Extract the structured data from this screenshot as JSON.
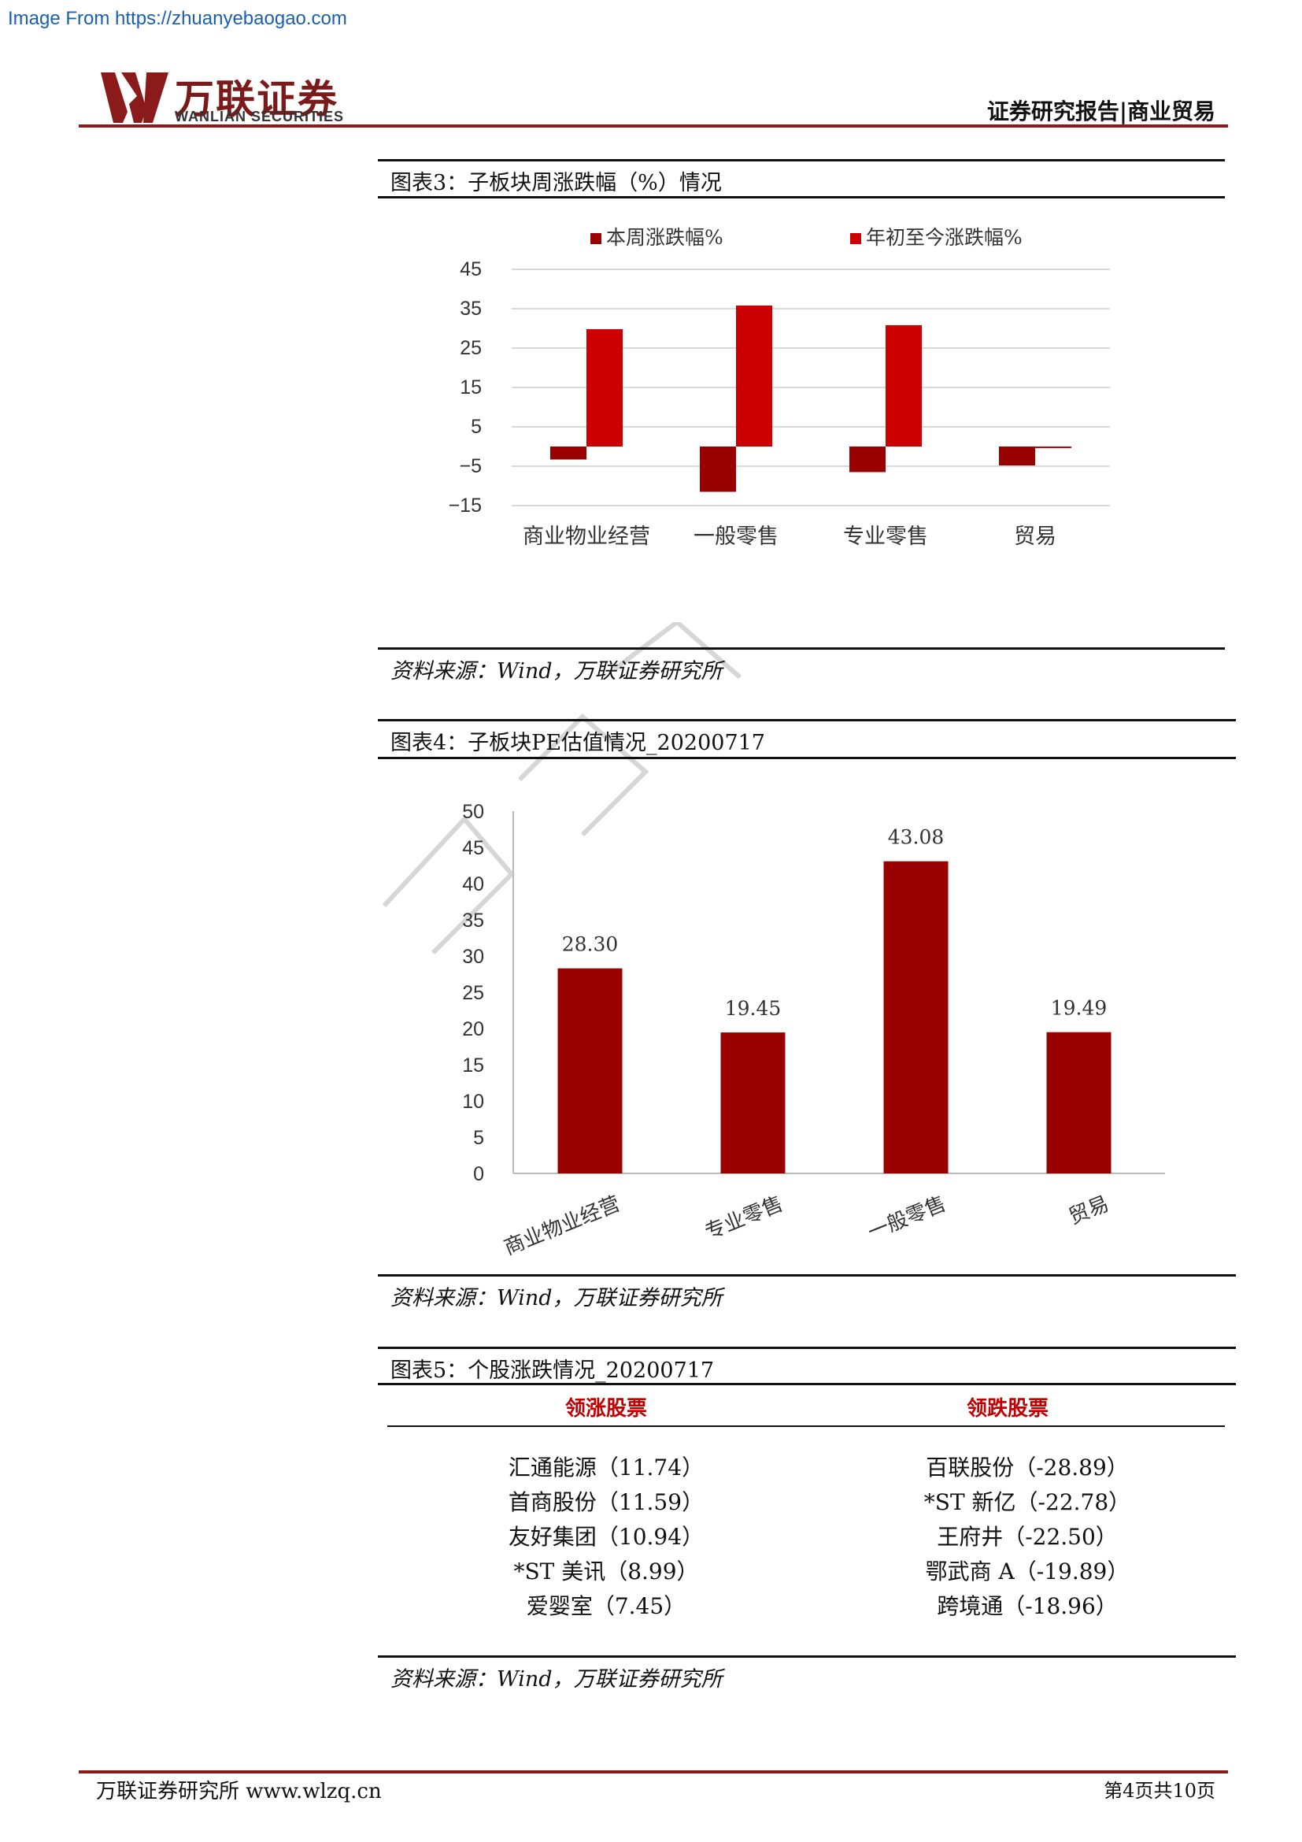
{
  "source_note": "Image From https://zhuanyebaogao.com",
  "logo": {
    "cn": "万联证券",
    "en": "WANLIAN SECURITIES"
  },
  "header": {
    "right": "证券研究报告|商业贸易"
  },
  "figure3": {
    "title": "图表3：子板块周涨跌幅（%）情况",
    "source": "资料来源：Wind，万联证券研究所"
  },
  "figure4": {
    "title": "图表4：子板块PE估值情况_20200717",
    "source": "资料来源：Wind，万联证券研究所"
  },
  "figure5": {
    "title": "图表5：个股涨跌情况_20200717",
    "headers": [
      "领涨股票",
      "领跌股票"
    ],
    "rows": [
      [
        "汇通能源（11.74）",
        "百联股份（-28.89）"
      ],
      [
        "首商股份（11.59）",
        "*ST 新亿（-22.78）"
      ],
      [
        "友好集团（10.94）",
        "王府井（-22.50）"
      ],
      [
        "*ST 美讯（8.99）",
        "鄂武商 A（-19.89）"
      ],
      [
        "爱婴室（7.45）",
        "跨境通（-18.96）"
      ]
    ],
    "source": "资料来源：Wind，万联证券研究所"
  },
  "footer": {
    "left": "万联证券研究所 www.wlzq.cn",
    "right": "第4页共10页"
  },
  "colors": {
    "dark_red": "#990000",
    "red": "#cc0000",
    "brand": "#8b1a1a"
  },
  "chart_data": [
    {
      "type": "bar",
      "categories": [
        "商业物业经营",
        "一般零售",
        "专业零售",
        "贸易"
      ],
      "series": [
        {
          "name": "本周涨跌幅%",
          "values": [
            -3.3,
            -11.5,
            -6.5,
            -4.8
          ],
          "color": "#990000"
        },
        {
          "name": "年初至今涨跌幅%",
          "values": [
            29.8,
            35.8,
            30.8,
            -0.1
          ],
          "color": "#cc0000"
        }
      ],
      "yticks": [
        45,
        35,
        25,
        15,
        5,
        -5,
        -15
      ],
      "ylim": [
        -15,
        45
      ],
      "grid": true,
      "legend": "top"
    },
    {
      "type": "bar",
      "categories": [
        "商业物业经营",
        "专业零售",
        "一般零售",
        "贸易"
      ],
      "values": [
        28.3,
        19.45,
        43.08,
        19.49
      ],
      "labels": [
        "28.30",
        "19.45",
        "43.08",
        "19.49"
      ],
      "yticks": [
        50,
        45,
        40,
        35,
        30,
        25,
        20,
        15,
        10,
        5,
        0
      ],
      "ylim": [
        0,
        50
      ],
      "grid": false
    }
  ]
}
